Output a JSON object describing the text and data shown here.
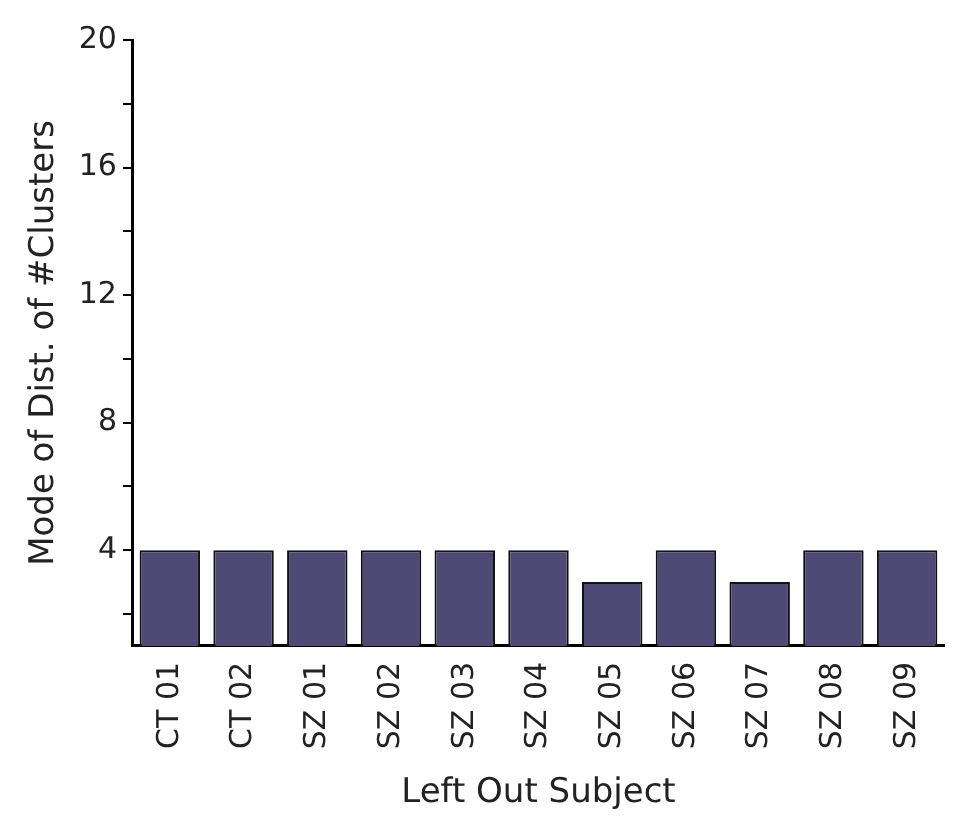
{
  "chart_data": {
    "type": "bar",
    "xlabel": "Left Out Subject",
    "ylabel": "Mode of Dist. of #Clusters",
    "categories": [
      "CT 01",
      "CT 02",
      "SZ 01",
      "SZ 02",
      "SZ 03",
      "SZ 04",
      "SZ 05",
      "SZ 06",
      "SZ 07",
      "SZ 08",
      "SZ 09"
    ],
    "values": [
      4,
      4,
      4,
      4,
      4,
      4,
      3,
      4,
      3,
      4,
      4
    ],
    "color": "#4f4a75",
    "ylim": [
      1,
      20
    ],
    "yticks": [
      {
        "value": 2,
        "label": null
      },
      4,
      {
        "value": 6,
        "label": null
      },
      8,
      {
        "value": 10,
        "label": null
      },
      12,
      {
        "value": 14,
        "label": null
      },
      16,
      {
        "value": 18,
        "label": null
      },
      20
    ],
    "grid": false
  }
}
